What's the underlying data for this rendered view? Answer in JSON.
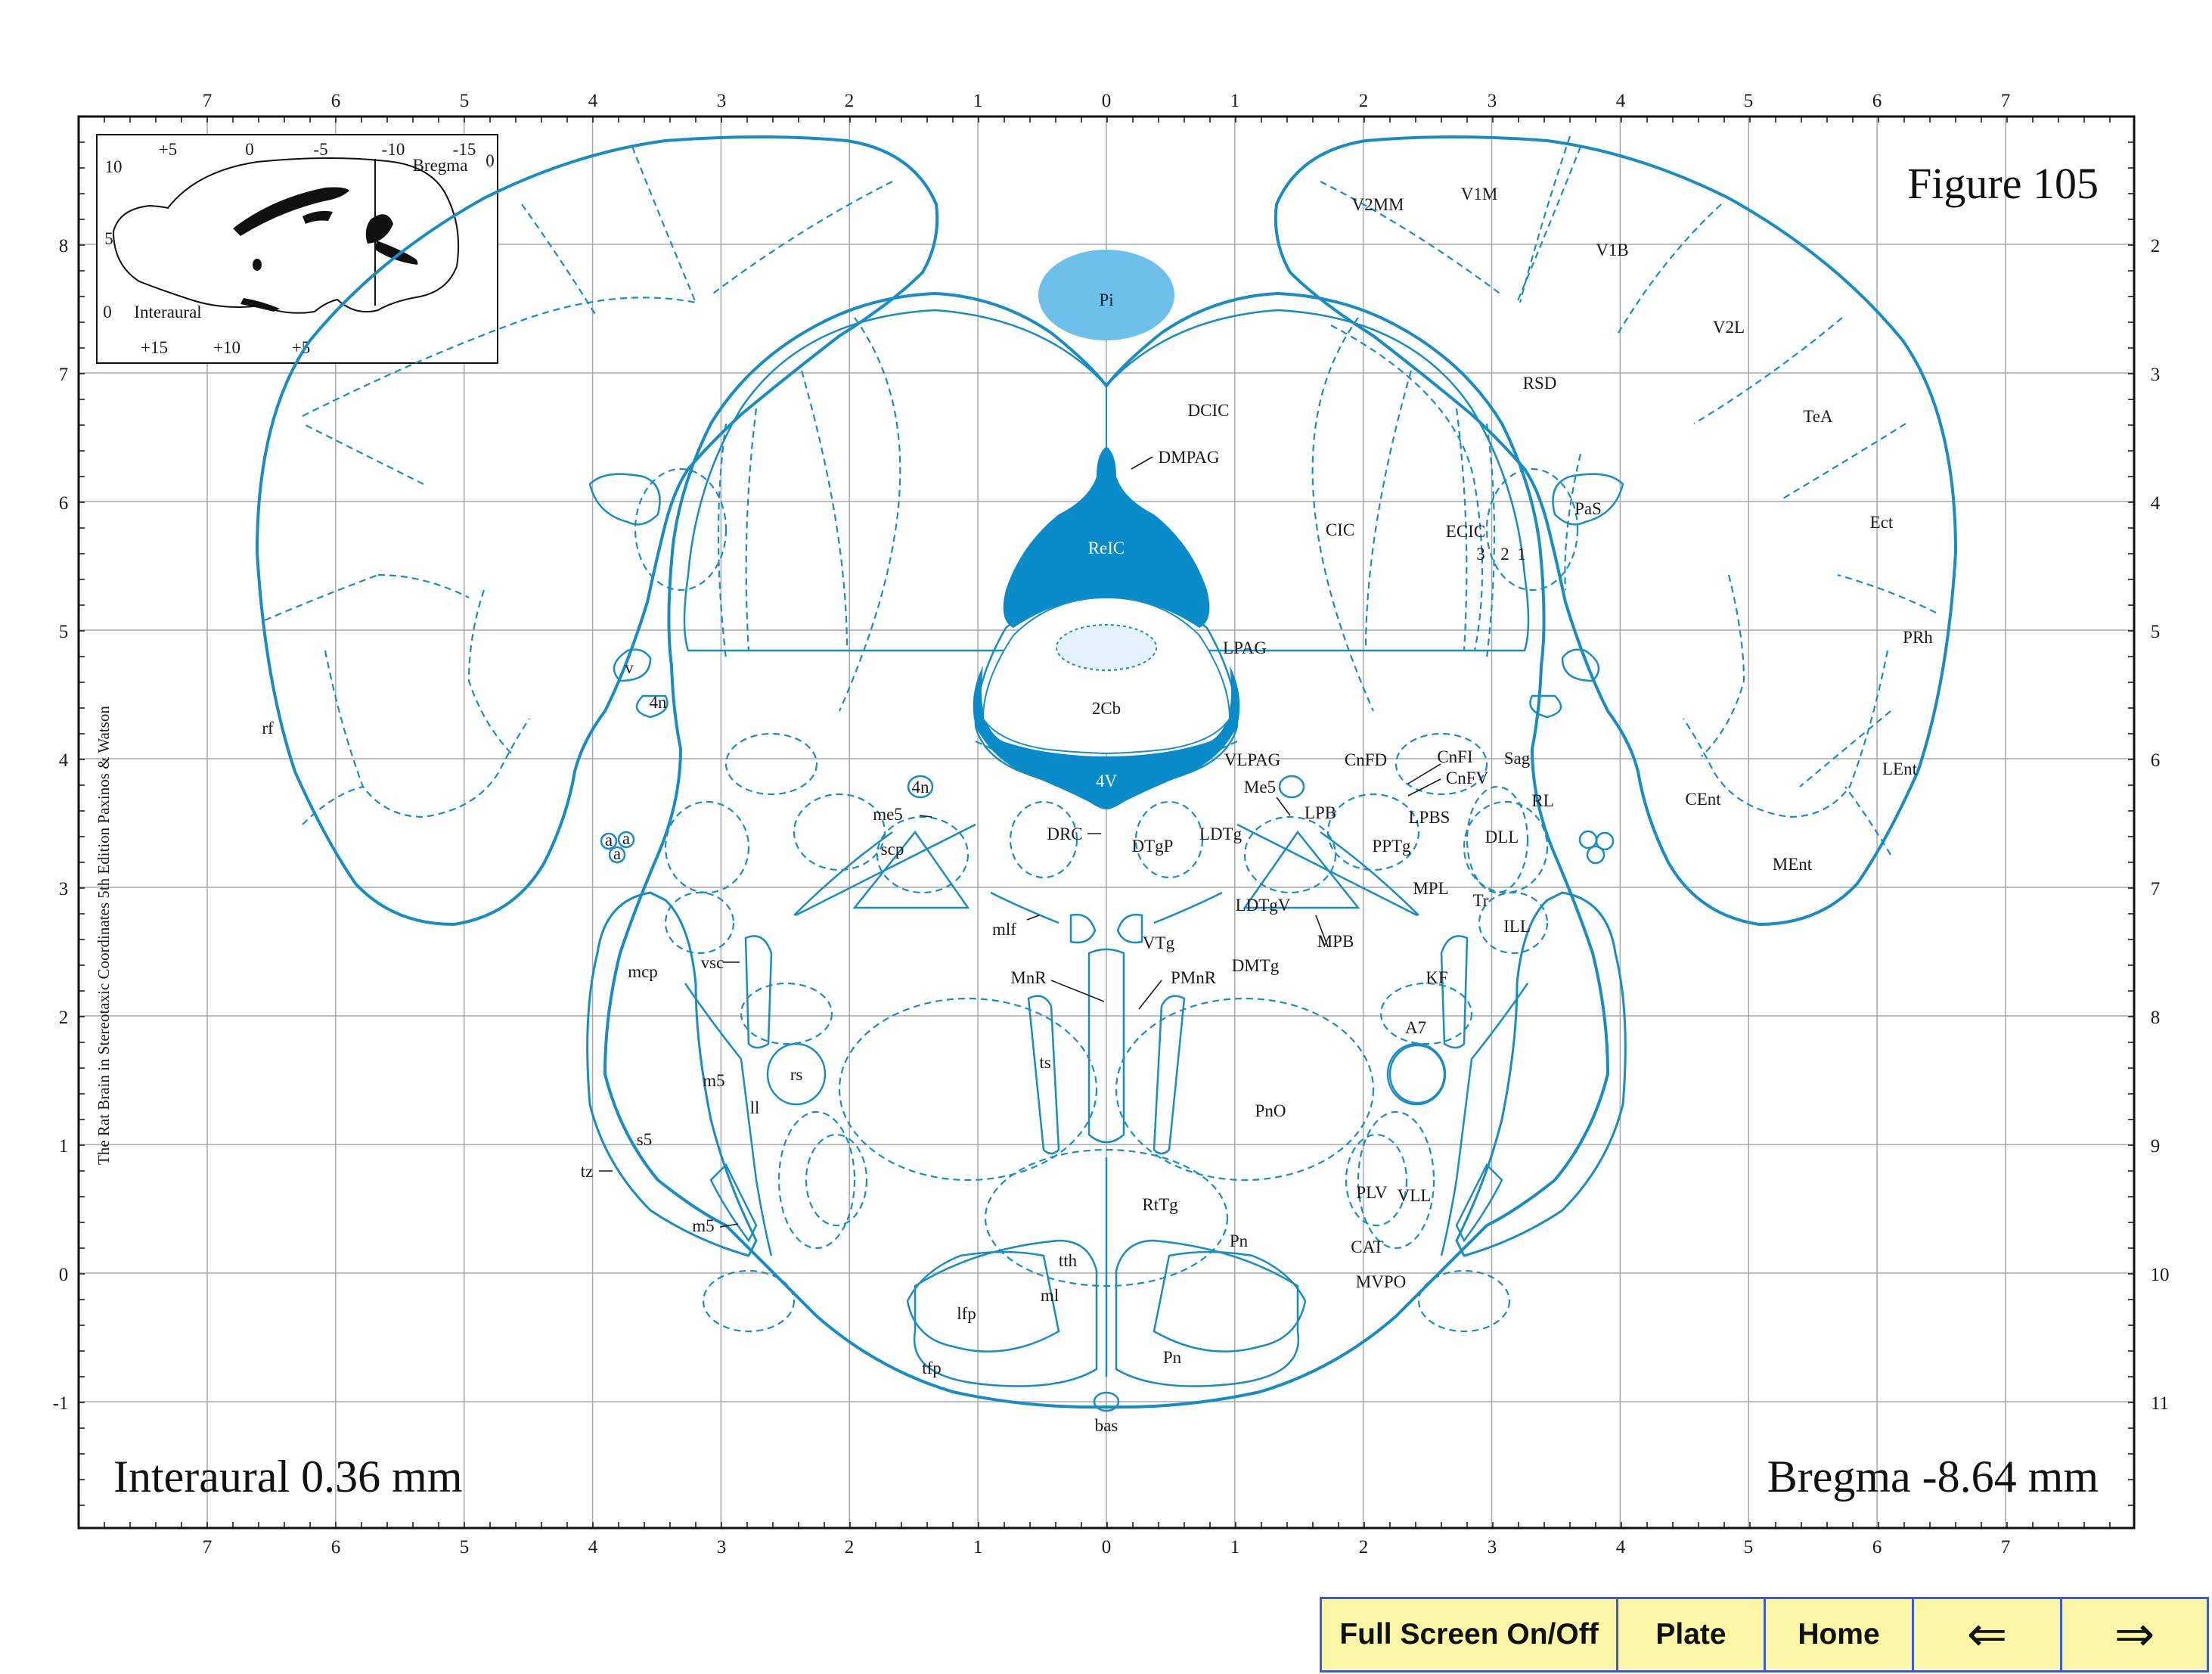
{
  "figure": {
    "title": "Figure 105",
    "interaural": "Interaural 0.36 mm",
    "bregma": "Bregma -8.64 mm",
    "side_text": "The Rat Brain in Stereotaxic Coordinates  5th Edition  Paxinos & Watson"
  },
  "inset": {
    "top_ticks": [
      "+5",
      "0",
      "-5",
      "-10",
      "-15"
    ],
    "bottom_ticks": [
      "+15",
      "+10",
      "+5"
    ],
    "left_ticks": [
      "10",
      "5",
      "0"
    ],
    "right_tick": "0",
    "bregma_label": "Bregma",
    "interaural_label": "Interaural"
  },
  "axes": {
    "top_ticks": [
      "7",
      "6",
      "5",
      "4",
      "3",
      "2",
      "1",
      "0",
      "1",
      "2",
      "3",
      "4",
      "5",
      "6",
      "7"
    ],
    "bottom_ticks": [
      "7",
      "6",
      "5",
      "4",
      "3",
      "2",
      "1",
      "0",
      "1",
      "2",
      "3",
      "4",
      "5",
      "6",
      "7"
    ],
    "left_ticks": [
      "8",
      "7",
      "6",
      "5",
      "4",
      "3",
      "2",
      "1",
      "0",
      "-1"
    ],
    "right_ticks": [
      "2",
      "3",
      "4",
      "5",
      "6",
      "7",
      "8",
      "9",
      "10",
      "11"
    ]
  },
  "regions": [
    {
      "id": "pi",
      "label": "Pi"
    },
    {
      "id": "dcic",
      "label": "DCIC"
    },
    {
      "id": "dmpag",
      "label": "DMPAG"
    },
    {
      "id": "reic",
      "label": "ReIC"
    },
    {
      "id": "cic",
      "label": "CIC"
    },
    {
      "id": "ecic",
      "label": "ECIC"
    },
    {
      "id": "ecic3",
      "label": "3"
    },
    {
      "id": "ecic2",
      "label": "2"
    },
    {
      "id": "ecic1",
      "label": "1"
    },
    {
      "id": "lpag",
      "label": "LPAG"
    },
    {
      "id": "2cb",
      "label": "2Cb"
    },
    {
      "id": "4v",
      "label": "4V"
    },
    {
      "id": "vlpag",
      "label": "VLPAG"
    },
    {
      "id": "me5r",
      "label": "Me5"
    },
    {
      "id": "cnfd",
      "label": "CnFD"
    },
    {
      "id": "cnfi",
      "label": "CnFI"
    },
    {
      "id": "cnfv",
      "label": "CnFV"
    },
    {
      "id": "sag",
      "label": "Sag"
    },
    {
      "id": "rl",
      "label": "RL"
    },
    {
      "id": "lpb",
      "label": "LPB"
    },
    {
      "id": "lpbs",
      "label": "LPBS"
    },
    {
      "id": "pptg",
      "label": "PPTg"
    },
    {
      "id": "dll",
      "label": "DLL"
    },
    {
      "id": "mpl",
      "label": "MPL"
    },
    {
      "id": "tr",
      "label": "Tr"
    },
    {
      "id": "ill",
      "label": "ILL"
    },
    {
      "id": "mpb",
      "label": "MPB"
    },
    {
      "id": "ldtgv",
      "label": "LDTgV"
    },
    {
      "id": "ldtg",
      "label": "LDTg"
    },
    {
      "id": "dtgp",
      "label": "DTgP"
    },
    {
      "id": "drc",
      "label": "DRC"
    },
    {
      "id": "vtg",
      "label": "VTg"
    },
    {
      "id": "dmtg",
      "label": "DMTg"
    },
    {
      "id": "pmnr",
      "label": "PMnR"
    },
    {
      "id": "mnr",
      "label": "MnR"
    },
    {
      "id": "kf",
      "label": "KF"
    },
    {
      "id": "a7",
      "label": "A7"
    },
    {
      "id": "pno",
      "label": "PnO"
    },
    {
      "id": "ts",
      "label": "ts"
    },
    {
      "id": "rttg",
      "label": "RtTg"
    },
    {
      "id": "plv",
      "label": "PLV"
    },
    {
      "id": "vll",
      "label": "VLL"
    },
    {
      "id": "cat",
      "label": "CAT"
    },
    {
      "id": "mvpo",
      "label": "MVPO"
    },
    {
      "id": "pn1",
      "label": "Pn"
    },
    {
      "id": "pn2",
      "label": "Pn"
    },
    {
      "id": "tth",
      "label": "tth"
    },
    {
      "id": "ml",
      "label": "ml"
    },
    {
      "id": "lfp",
      "label": "lfp"
    },
    {
      "id": "tfp",
      "label": "tfp"
    },
    {
      "id": "bas",
      "label": "bas"
    },
    {
      "id": "v2mm",
      "label": "V2MM"
    },
    {
      "id": "v1m",
      "label": "V1M"
    },
    {
      "id": "v1b",
      "label": "V1B"
    },
    {
      "id": "v2l",
      "label": "V2L"
    },
    {
      "id": "rsd",
      "label": "RSD"
    },
    {
      "id": "tea",
      "label": "TeA"
    },
    {
      "id": "ect",
      "label": "Ect"
    },
    {
      "id": "pas",
      "label": "PaS"
    },
    {
      "id": "prh",
      "label": "PRh"
    },
    {
      "id": "lent",
      "label": "LEnt"
    },
    {
      "id": "cent",
      "label": "CEnt"
    },
    {
      "id": "ment",
      "label": "MEnt"
    },
    {
      "id": "v",
      "label": "v"
    },
    {
      "id": "4n",
      "label": "4n"
    },
    {
      "id": "4nr",
      "label": "4n"
    },
    {
      "id": "rf",
      "label": "rf"
    },
    {
      "id": "a1",
      "label": "a"
    },
    {
      "id": "a2",
      "label": "a"
    },
    {
      "id": "a3",
      "label": "a"
    },
    {
      "id": "me5",
      "label": "me5"
    },
    {
      "id": "scp",
      "label": "scp"
    },
    {
      "id": "mlf",
      "label": "mlf"
    },
    {
      "id": "mcp",
      "label": "mcp"
    },
    {
      "id": "vsc",
      "label": "vsc"
    },
    {
      "id": "rs",
      "label": "rs"
    },
    {
      "id": "m5",
      "label": "m5"
    },
    {
      "id": "ll",
      "label": "ll"
    },
    {
      "id": "s5",
      "label": "s5"
    },
    {
      "id": "tz",
      "label": "tz"
    },
    {
      "id": "m5b",
      "label": "m5"
    }
  ],
  "colors": {
    "outline": "#1a8cc4",
    "ventricle": "#0a8bc9",
    "pineal": "#6cc0ea",
    "grid": "#a8a8a8"
  },
  "nav": {
    "fullscreen": "Full Screen On/Off",
    "plate": "Plate",
    "home": "Home",
    "prev": "⇐",
    "next": "⇒"
  }
}
